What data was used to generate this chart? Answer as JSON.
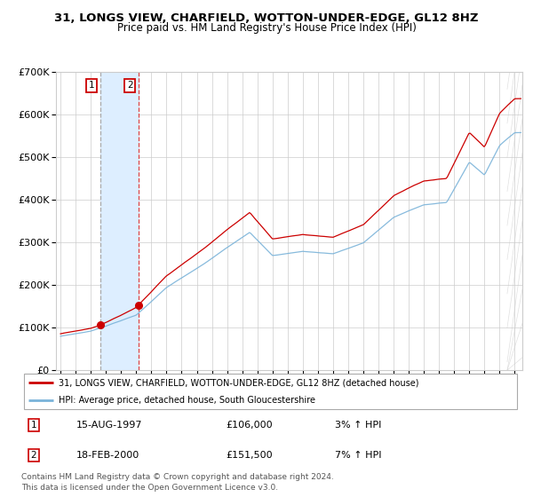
{
  "title": "31, LONGS VIEW, CHARFIELD, WOTTON-UNDER-EDGE, GL12 8HZ",
  "subtitle": "Price paid vs. HM Land Registry's House Price Index (HPI)",
  "sale1_label": "15-AUG-1997",
  "sale1_price": 106000,
  "sale1_hpi_pct": "3%",
  "sale2_label": "18-FEB-2000",
  "sale2_price": 151500,
  "sale2_hpi_pct": "7%",
  "sale1_x": 1997.621,
  "sale2_x": 2000.132,
  "hpi_line_color": "#7ab3d9",
  "price_line_color": "#cc0000",
  "dot_color": "#cc0000",
  "vline1_color": "#aaaaaa",
  "vline2_color": "#dd4444",
  "shade_color": "#ddeeff",
  "legend_line1": "31, LONGS VIEW, CHARFIELD, WOTTON-UNDER-EDGE, GL12 8HZ (detached house)",
  "legend_line2": "HPI: Average price, detached house, South Gloucestershire",
  "footer": "Contains HM Land Registry data © Crown copyright and database right 2024.\nThis data is licensed under the Open Government Licence v3.0.",
  "ylim": [
    0,
    700000
  ],
  "xlim_start": 1994.7,
  "xlim_end": 2025.5,
  "background_color": "#ffffff",
  "grid_color": "#cccccc"
}
